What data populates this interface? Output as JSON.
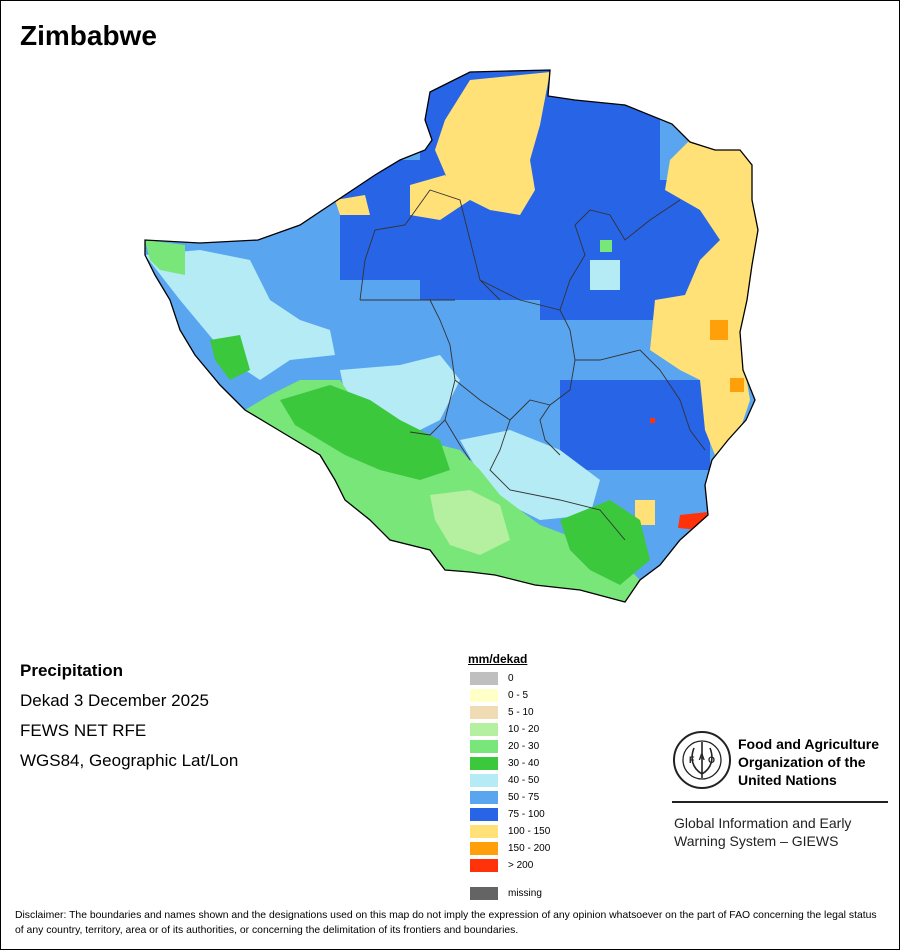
{
  "map": {
    "title": "Zimbabwe",
    "layer": "Precipitation",
    "period": "Dekad 3 December 2025",
    "source": "FEWS NET RFE",
    "projection": "WGS84, Geographic Lat/Lon"
  },
  "legend": {
    "title": "mm/dekad",
    "items": [
      {
        "label": "0",
        "color": "#bfbfbf"
      },
      {
        "label": "0 - 5",
        "color": "#ffffc8"
      },
      {
        "label": "5 - 10",
        "color": "#f0dcb4"
      },
      {
        "label": "10 - 20",
        "color": "#b4f0a0"
      },
      {
        "label": "20 - 30",
        "color": "#78e678"
      },
      {
        "label": "30 - 40",
        "color": "#3cc83c"
      },
      {
        "label": "40 - 50",
        "color": "#b4ebf5"
      },
      {
        "label": "50 - 75",
        "color": "#5aa5f0"
      },
      {
        "label": "75 - 100",
        "color": "#2864e6"
      },
      {
        "label": "100 - 150",
        "color": "#ffe178"
      },
      {
        "label": "150 - 200",
        "color": "#ffa00a"
      },
      {
        "label": "> 200",
        "color": "#ff320a"
      },
      {
        "label": "missing",
        "color": "#646464"
      }
    ]
  },
  "fao": {
    "name_line1": "Food and Agriculture",
    "name_line2": "Organization of the",
    "name_line3": "United Nations",
    "giews_line1": "Global Information and Early",
    "giews_line2": "Warning System – GIEWS"
  },
  "disclaimer": "Disclaimer: The boundaries and names shown and the designations used on this map do not imply the expression of any opinion whatsoever on the part of FAO concerning the legal status of any country, territory, area or of its authorities, or concerning the delimitation of its frontiers and boundaries."
}
